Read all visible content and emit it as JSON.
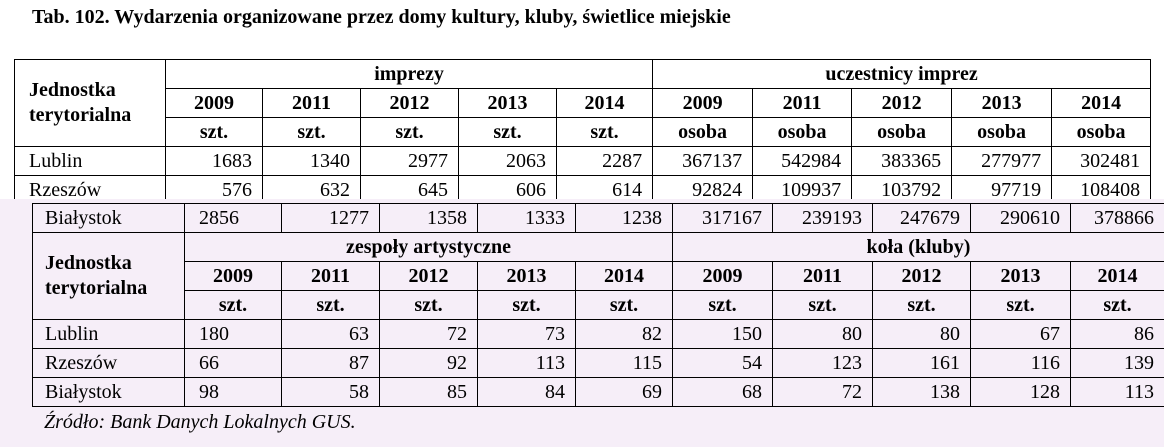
{
  "title": "Tab. 102. Wydarzenia organizowane przez domy kultury, kluby, świetlice miejskie",
  "table1": {
    "row_header": "Jednostka terytorialna",
    "group1": "imprezy",
    "group2": "uczestnicy imprez",
    "years": [
      "2009",
      "2011",
      "2012",
      "2013",
      "2014"
    ],
    "unit1": "szt.",
    "unit2": "osoba",
    "rows": [
      {
        "name": "Lublin",
        "values": [
          "1683",
          "1340",
          "2977",
          "2063",
          "2287",
          "367137",
          "542984",
          "383365",
          "277977",
          "302481"
        ]
      },
      {
        "name": "Rzeszów",
        "values": [
          "576",
          "632",
          "645",
          "606",
          "614",
          "92824",
          "109937",
          "103792",
          "97719",
          "108408"
        ]
      },
      {
        "name": "Białystok",
        "values": [
          "2856",
          "1277",
          "1358",
          "1333",
          "1238",
          "317167",
          "239193",
          "247679",
          "290610",
          "378866"
        ]
      }
    ]
  },
  "table2": {
    "row_header": "Jednostka terytorialna",
    "group1": "zespoły artystyczne",
    "group2": "koła (kluby)",
    "years": [
      "2009",
      "2011",
      "2012",
      "2013",
      "2014"
    ],
    "unit": "szt.",
    "rows": [
      {
        "name": "Lublin",
        "values": [
          "180",
          "63",
          "72",
          "73",
          "82",
          "150",
          "80",
          "80",
          "67",
          "86"
        ]
      },
      {
        "name": "Rzeszów",
        "values": [
          "66",
          "87",
          "92",
          "113",
          "115",
          "54",
          "123",
          "161",
          "116",
          "139"
        ]
      },
      {
        "name": "Białystok",
        "values": [
          "98",
          "58",
          "85",
          "84",
          "69",
          "68",
          "72",
          "138",
          "128",
          "113"
        ]
      }
    ]
  },
  "source": "Źródło: Bank Danych Lokalnych GUS."
}
